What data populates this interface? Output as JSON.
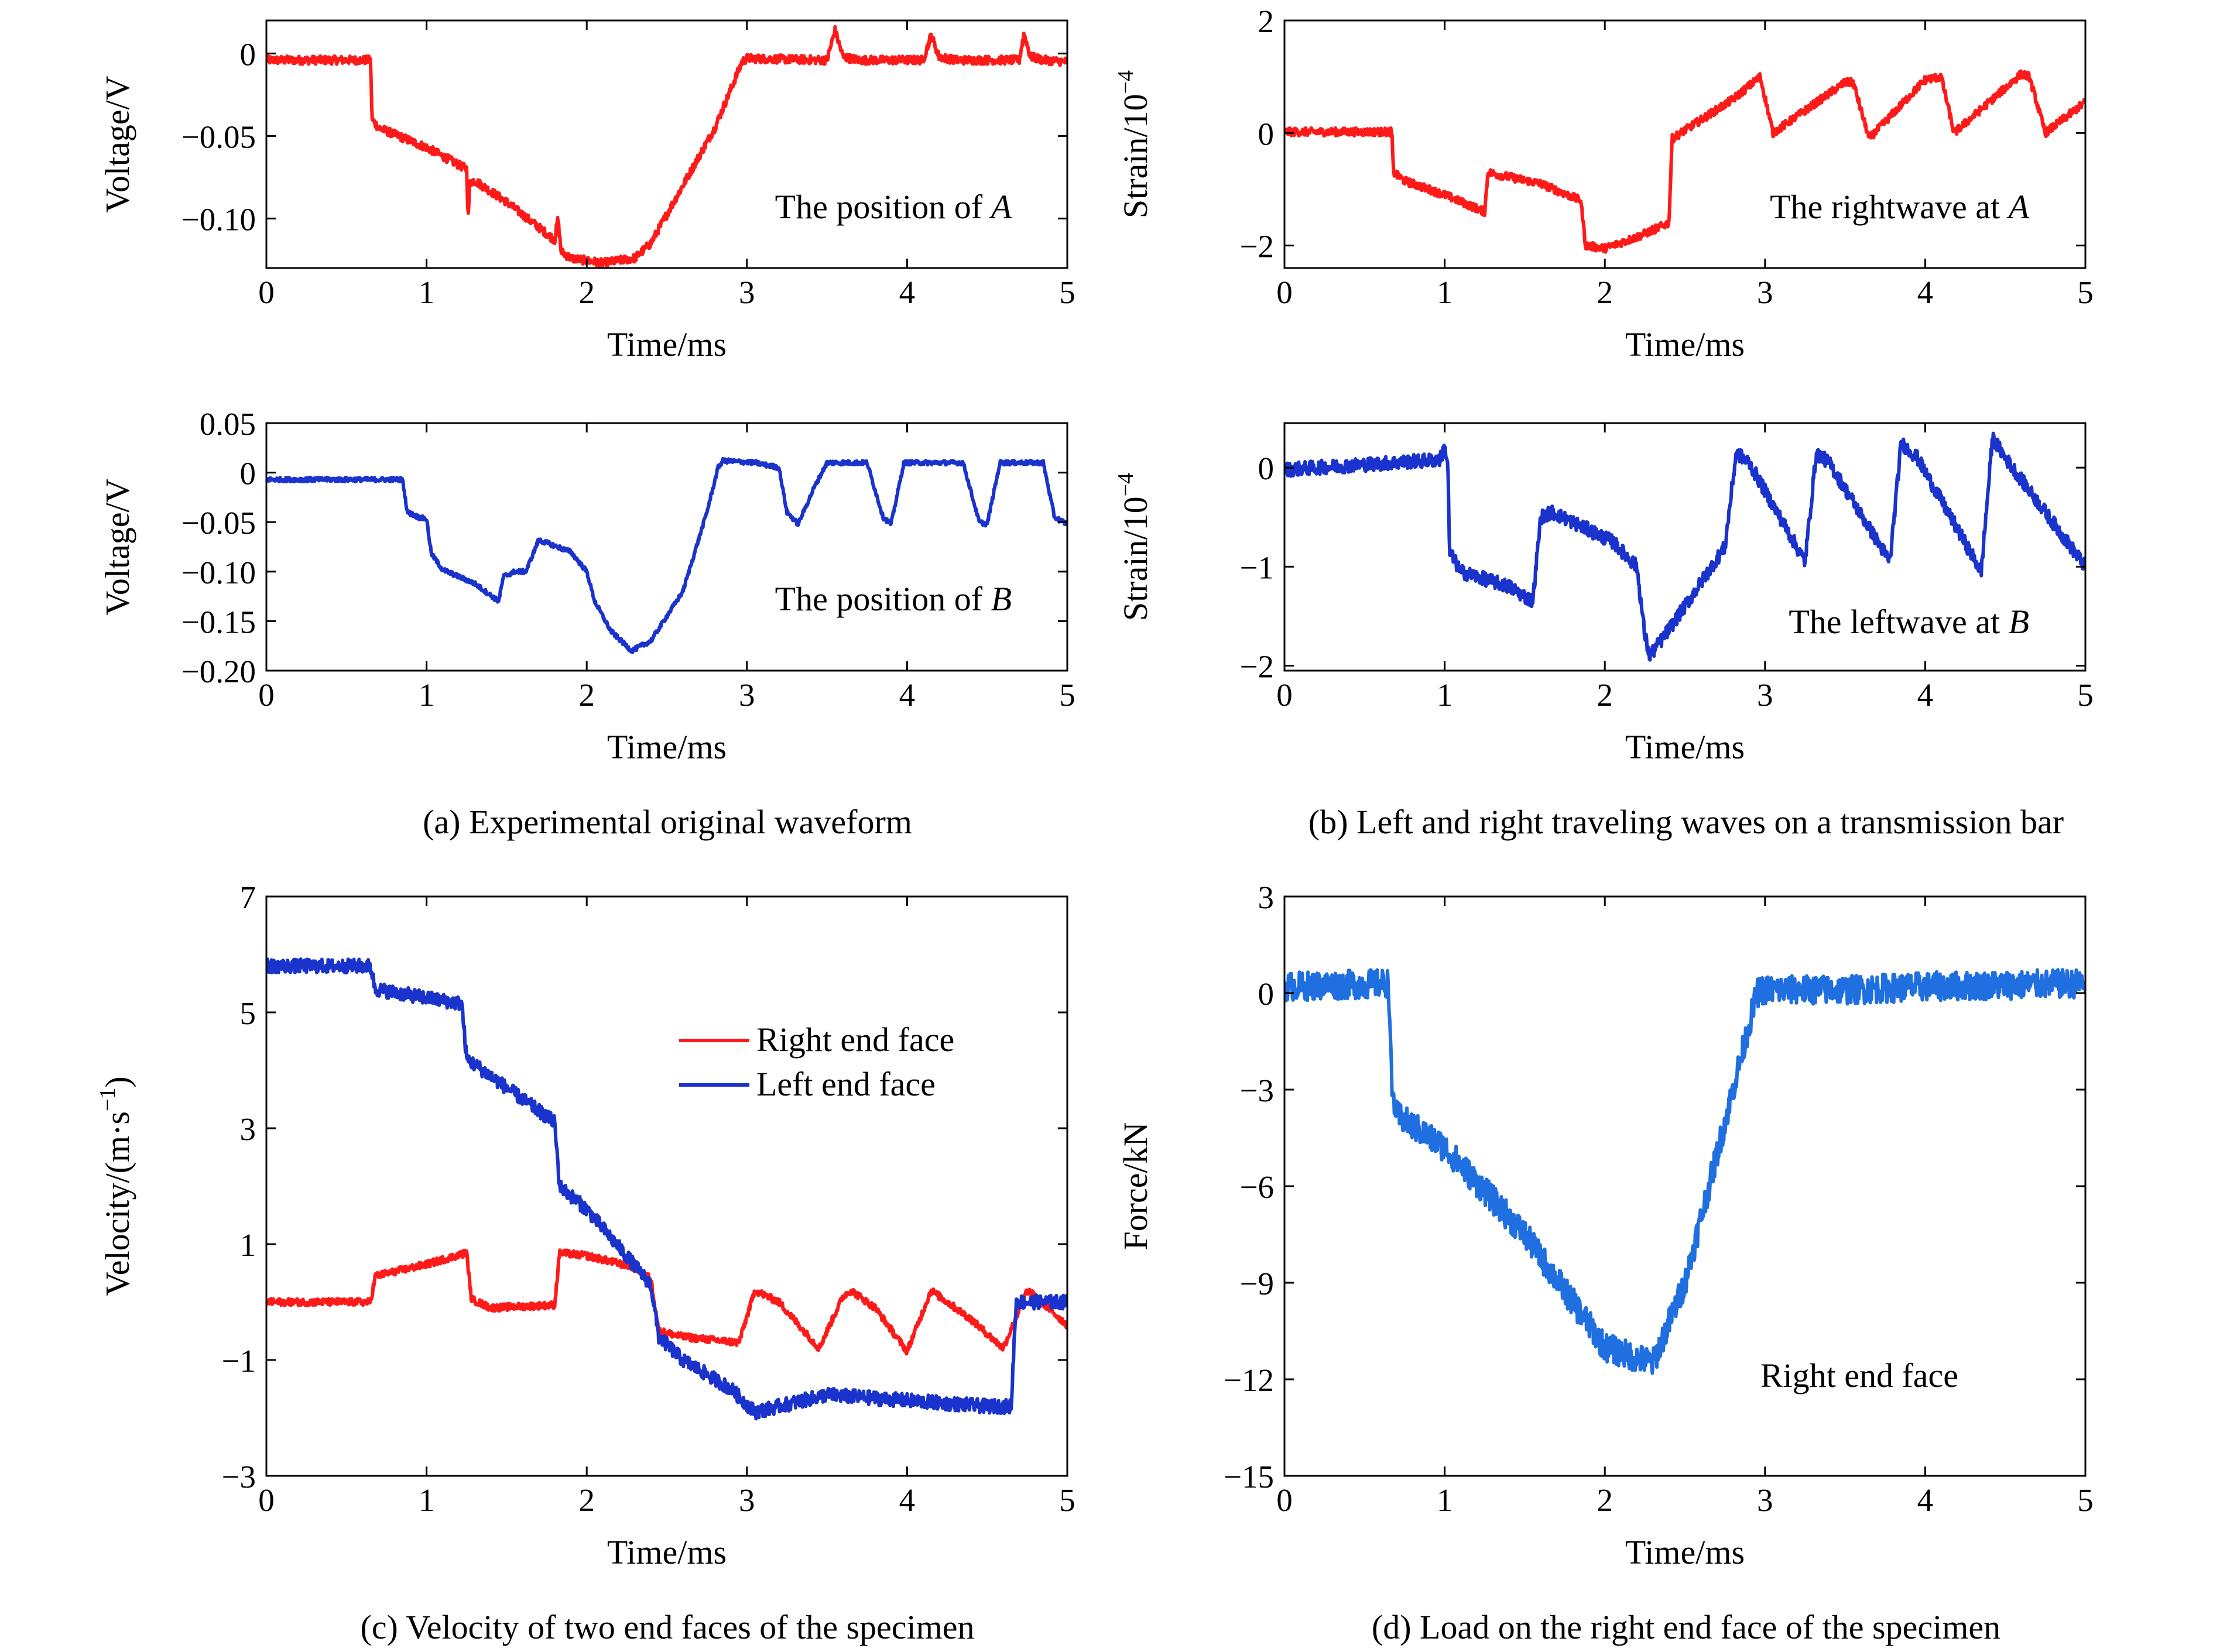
{
  "figure": {
    "captions": {
      "a": "(a) Experimental original waveform",
      "b": "(b) Left and right traveling waves on a transmission bar",
      "c": "(c) Velocity of two end faces of the specimen",
      "d": "(d) Load on the right end face of the specimen"
    }
  },
  "chart_data": [
    {
      "id": "a1",
      "type": "line",
      "xlabel": "Time/ms",
      "ylabel": "Voltage/V",
      "xlim": [
        0,
        5
      ],
      "ylim": [
        -0.13,
        0.02
      ],
      "xticks": [
        0,
        1,
        2,
        3,
        4,
        5
      ],
      "xtick_labels": [
        "0",
        "1",
        "2",
        "3",
        "4",
        "5"
      ],
      "yticks": [
        0,
        -0.05,
        -0.1
      ],
      "ytick_labels": [
        "0",
        "−0.05",
        "−0.10"
      ],
      "annotation": {
        "prefix": "The position of ",
        "var": "A"
      },
      "noise": 0.0025,
      "series": [
        {
          "color": "#ff1a1a",
          "x": [
            0,
            0.65,
            0.66,
            0.7,
            1.0,
            1.25,
            1.26,
            1.27,
            1.3,
            1.5,
            1.8,
            1.82,
            1.84,
            1.9,
            2.1,
            2.3,
            2.4,
            2.6,
            2.8,
            2.97,
            3.0,
            3.5,
            3.55,
            3.6,
            3.7,
            4.1,
            4.15,
            4.2,
            4.3,
            4.7,
            4.73,
            4.77,
            4.85,
            5.0
          ],
          "y": [
            -0.004,
            -0.004,
            -0.04,
            -0.045,
            -0.057,
            -0.07,
            -0.1,
            -0.078,
            -0.077,
            -0.09,
            -0.113,
            -0.1,
            -0.12,
            -0.124,
            -0.127,
            -0.124,
            -0.115,
            -0.08,
            -0.045,
            -0.005,
            -0.003,
            -0.004,
            0.014,
            -0.002,
            -0.004,
            -0.004,
            0.011,
            -0.002,
            -0.004,
            -0.004,
            0.012,
            -0.002,
            -0.004,
            -0.005
          ]
        }
      ]
    },
    {
      "id": "b1",
      "type": "line",
      "xlabel": "Time/ms",
      "ylabel": "Strain/10",
      "ylabel_sup": "−4",
      "xlim": [
        0,
        5
      ],
      "ylim": [
        -2.4,
        2
      ],
      "xticks": [
        0,
        1,
        2,
        3,
        4,
        5
      ],
      "xtick_labels": [
        "0",
        "1",
        "2",
        "3",
        "4",
        "5"
      ],
      "yticks": [
        2,
        0,
        -2
      ],
      "ytick_labels": [
        "2",
        "0",
        "−2"
      ],
      "annotation": {
        "prefix": "The rightwave at ",
        "var": "A"
      },
      "noise": 0.07,
      "series": [
        {
          "color": "#ff1a1a",
          "x": [
            0,
            0.67,
            0.68,
            0.75,
            1.0,
            1.25,
            1.27,
            1.35,
            1.6,
            1.85,
            1.88,
            2.0,
            2.2,
            2.4,
            2.42,
            2.5,
            2.8,
            2.97,
            3.05,
            3.5,
            3.55,
            3.65,
            4.0,
            4.1,
            4.18,
            4.6,
            4.65,
            4.75,
            5.0
          ],
          "y": [
            0.02,
            0.02,
            -0.7,
            -0.85,
            -1.1,
            -1.4,
            -0.7,
            -0.75,
            -0.9,
            -1.2,
            -2.0,
            -2.05,
            -1.85,
            -1.6,
            -0.1,
            0.05,
            0.6,
            1.0,
            0.0,
            0.9,
            0.9,
            -0.1,
            0.95,
            1.0,
            0.0,
            1.05,
            1.0,
            0.0,
            0.55
          ]
        }
      ]
    },
    {
      "id": "a2",
      "type": "line",
      "xlabel": "Time/ms",
      "ylabel": "Voltage/V",
      "xlim": [
        0,
        5
      ],
      "ylim": [
        -0.2,
        0.05
      ],
      "xticks": [
        0,
        1,
        2,
        3,
        4,
        5
      ],
      "xtick_labels": [
        "0",
        "1",
        "2",
        "3",
        "4",
        "5"
      ],
      "yticks": [
        0.05,
        0,
        -0.05,
        -0.1,
        -0.15,
        -0.2
      ],
      "ytick_labels": [
        "0.05",
        "0",
        "−0.05",
        "−0.10",
        "−0.15",
        "−0.20"
      ],
      "annotation": {
        "prefix": "The position of ",
        "var": "B"
      },
      "noise": 0.0022,
      "series": [
        {
          "color": "#1a33cc",
          "x": [
            0,
            0.85,
            0.88,
            0.95,
            1.0,
            1.03,
            1.1,
            1.3,
            1.45,
            1.48,
            1.55,
            1.62,
            1.7,
            1.9,
            2.0,
            2.05,
            2.15,
            2.28,
            2.4,
            2.6,
            2.75,
            2.82,
            2.85,
            3.05,
            3.2,
            3.25,
            3.32,
            3.42,
            3.5,
            3.75,
            3.85,
            3.9,
            3.98,
            4.35,
            4.45,
            4.5,
            4.58,
            4.85,
            4.92,
            5.0
          ],
          "y": [
            -0.007,
            -0.007,
            -0.04,
            -0.045,
            -0.047,
            -0.082,
            -0.098,
            -0.112,
            -0.13,
            -0.105,
            -0.1,
            -0.1,
            -0.068,
            -0.08,
            -0.1,
            -0.13,
            -0.16,
            -0.18,
            -0.17,
            -0.12,
            -0.04,
            0.005,
            0.012,
            0.01,
            0.005,
            -0.04,
            -0.052,
            -0.015,
            0.01,
            0.01,
            -0.045,
            -0.052,
            0.01,
            0.01,
            -0.05,
            -0.052,
            0.01,
            0.01,
            -0.045,
            -0.052
          ]
        }
      ]
    },
    {
      "id": "b2",
      "type": "line",
      "xlabel": "Time/ms",
      "ylabel": "Strain/10",
      "ylabel_sup": "−4",
      "xlim": [
        0,
        5
      ],
      "ylim": [
        -2.05,
        0.45
      ],
      "xticks": [
        0,
        1,
        2,
        3,
        4,
        5
      ],
      "xtick_labels": [
        "0",
        "1",
        "2",
        "3",
        "4",
        "5"
      ],
      "yticks": [
        0,
        -1,
        -2
      ],
      "ytick_labels": [
        "0",
        "−1",
        "−2"
      ],
      "annotation": {
        "prefix": "The leftwave at ",
        "var": "B"
      },
      "noise": 0.07,
      "series": [
        {
          "color": "#1a33cc",
          "x": [
            0,
            0.97,
            1.0,
            1.02,
            1.03,
            1.1,
            1.4,
            1.55,
            1.6,
            1.67,
            1.8,
            2.05,
            2.2,
            2.25,
            2.28,
            2.35,
            2.5,
            2.75,
            2.82,
            2.9,
            3.25,
            3.32,
            3.4,
            3.78,
            3.85,
            3.95,
            4.35,
            4.42,
            4.5,
            5.0
          ],
          "y": [
            -0.02,
            0.08,
            0.2,
            0.05,
            -0.85,
            -1.05,
            -1.2,
            -1.35,
            -0.5,
            -0.45,
            -0.55,
            -0.75,
            -1.0,
            -1.7,
            -1.9,
            -1.75,
            -1.4,
            -0.8,
            0.15,
            0.05,
            -0.95,
            0.15,
            0.05,
            -0.95,
            0.25,
            0.1,
            -1.05,
            0.3,
            0.1,
            -1.0
          ]
        }
      ]
    },
    {
      "id": "c",
      "type": "line",
      "xlabel": "Time/ms",
      "ylabel": "Velocity/(m·s",
      "ylabel_sup": "−1",
      "ylabel_tail": ")",
      "xlim": [
        0,
        5
      ],
      "ylim": [
        -3,
        7
      ],
      "xticks": [
        0,
        1,
        2,
        3,
        4,
        5
      ],
      "xtick_labels": [
        "0",
        "1",
        "2",
        "3",
        "4",
        "5"
      ],
      "yticks": [
        7,
        5,
        3,
        1,
        -1,
        -3
      ],
      "ytick_labels": [
        "7",
        "5",
        "3",
        "1",
        "−1",
        "−3"
      ],
      "legend": {
        "position": "top-right",
        "entries": [
          {
            "label": "Right end face",
            "color": "#ff1a1a"
          },
          {
            "label": "Left end face",
            "color": "#1a33cc"
          }
        ]
      },
      "series": [
        {
          "name": "Right end face",
          "color": "#ff1a1a",
          "noise": 0.06,
          "x": [
            0,
            0.65,
            0.68,
            1.0,
            1.25,
            1.28,
            1.4,
            1.8,
            1.83,
            2.0,
            2.3,
            2.4,
            2.45,
            2.6,
            2.95,
            3.05,
            3.2,
            3.45,
            3.6,
            3.65,
            3.8,
            4.0,
            4.15,
            4.2,
            4.4,
            4.6,
            4.75,
            4.8,
            5.0
          ],
          "y": [
            0.0,
            0.0,
            0.45,
            0.65,
            0.85,
            0.05,
            -0.1,
            -0.05,
            0.85,
            0.8,
            0.6,
            0.4,
            -0.5,
            -0.6,
            -0.7,
            0.2,
            0.0,
            -0.8,
            0.1,
            0.2,
            -0.1,
            -0.85,
            0.2,
            0.1,
            -0.3,
            -0.8,
            0.2,
            0.1,
            -0.4
          ]
        },
        {
          "name": "Left end face",
          "color": "#1a33cc",
          "noise": 0.12,
          "x": [
            0,
            0.65,
            0.68,
            1.0,
            1.22,
            1.25,
            1.35,
            1.8,
            1.83,
            2.0,
            2.4,
            2.45,
            2.6,
            2.9,
            3.05,
            3.5,
            4.0,
            4.5,
            4.65,
            4.68,
            5.0
          ],
          "y": [
            5.8,
            5.8,
            5.4,
            5.25,
            5.15,
            4.2,
            4.0,
            3.1,
            2.0,
            1.6,
            0.3,
            -0.6,
            -1.0,
            -1.5,
            -1.9,
            -1.6,
            -1.7,
            -1.8,
            -1.8,
            0.0,
            0.0
          ]
        }
      ]
    },
    {
      "id": "d",
      "type": "line",
      "xlabel": "Time/ms",
      "ylabel": "Force/kN",
      "xlim": [
        0,
        5
      ],
      "ylim": [
        -15,
        3
      ],
      "xticks": [
        0,
        1,
        2,
        3,
        4,
        5
      ],
      "xtick_labels": [
        "0",
        "1",
        "2",
        "3",
        "4",
        "5"
      ],
      "yticks": [
        3,
        0,
        -3,
        -6,
        -9,
        -12,
        -15
      ],
      "ytick_labels": [
        "3",
        "0",
        "−3",
        "−6",
        "−9",
        "−12",
        "−15"
      ],
      "annotation": {
        "prefix": "Right end face",
        "var": ""
      },
      "noise": 0.45,
      "series": [
        {
          "color": "#1f6fe0",
          "x": [
            0,
            0.65,
            0.67,
            0.7,
            1.0,
            1.5,
            2.0,
            2.3,
            2.5,
            2.8,
            2.95,
            3.0,
            3.5,
            4.0,
            5.0
          ],
          "y": [
            0.2,
            0.3,
            -3.0,
            -3.8,
            -4.8,
            -7.5,
            -11.0,
            -11.5,
            -9.0,
            -3.0,
            0.0,
            0.1,
            0.1,
            0.2,
            0.3
          ]
        }
      ]
    }
  ]
}
